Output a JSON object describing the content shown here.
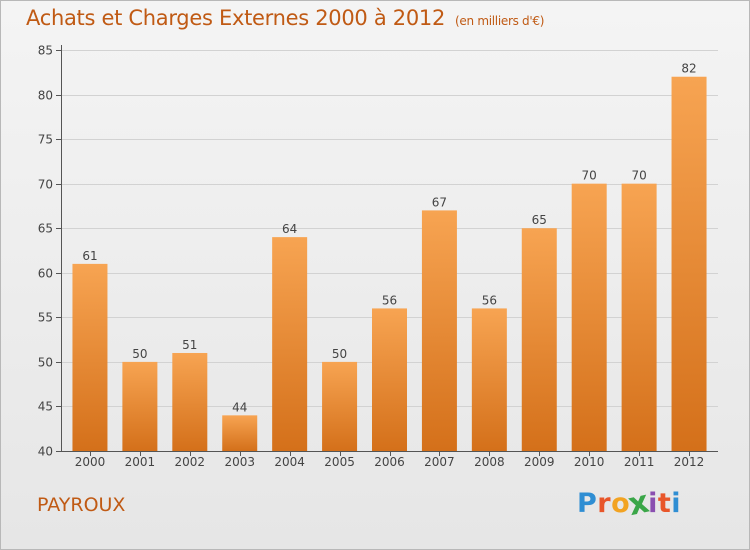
{
  "header": {
    "title": "Achats et Charges Externes 2000 à 2012",
    "unit": "(en milliers d'€)"
  },
  "footer": {
    "place": "PAYROUX",
    "logo": {
      "letters": [
        "P",
        "r",
        "o",
        "x",
        "i",
        "t",
        "i"
      ],
      "colors": [
        "#2f8ed3",
        "#e8562a",
        "#f2a322",
        "#3aa648",
        "#8a4fb0",
        "#e8562a",
        "#2f8ed3"
      ]
    }
  },
  "colors": {
    "title": "#c05a14",
    "bar_top": "#f7a452",
    "bar_bottom": "#d4701a",
    "grid": "#d2d2d2",
    "axis": "#555555"
  },
  "chart_data": {
    "type": "bar",
    "categories": [
      "2000",
      "2001",
      "2002",
      "2003",
      "2004",
      "2005",
      "2006",
      "2007",
      "2008",
      "2009",
      "2010",
      "2011",
      "2012"
    ],
    "values": [
      61,
      50,
      51,
      44,
      64,
      50,
      56,
      67,
      56,
      65,
      70,
      70,
      82
    ],
    "data_labels": [
      "61",
      "50",
      "51",
      "44",
      "64",
      "50",
      "56",
      "67",
      "56",
      "65",
      "70",
      "70",
      "82"
    ],
    "ylim": [
      40,
      85
    ],
    "yticks": [
      40,
      45,
      50,
      55,
      60,
      65,
      70,
      75,
      80,
      85
    ],
    "grid": true,
    "legend": "none"
  }
}
